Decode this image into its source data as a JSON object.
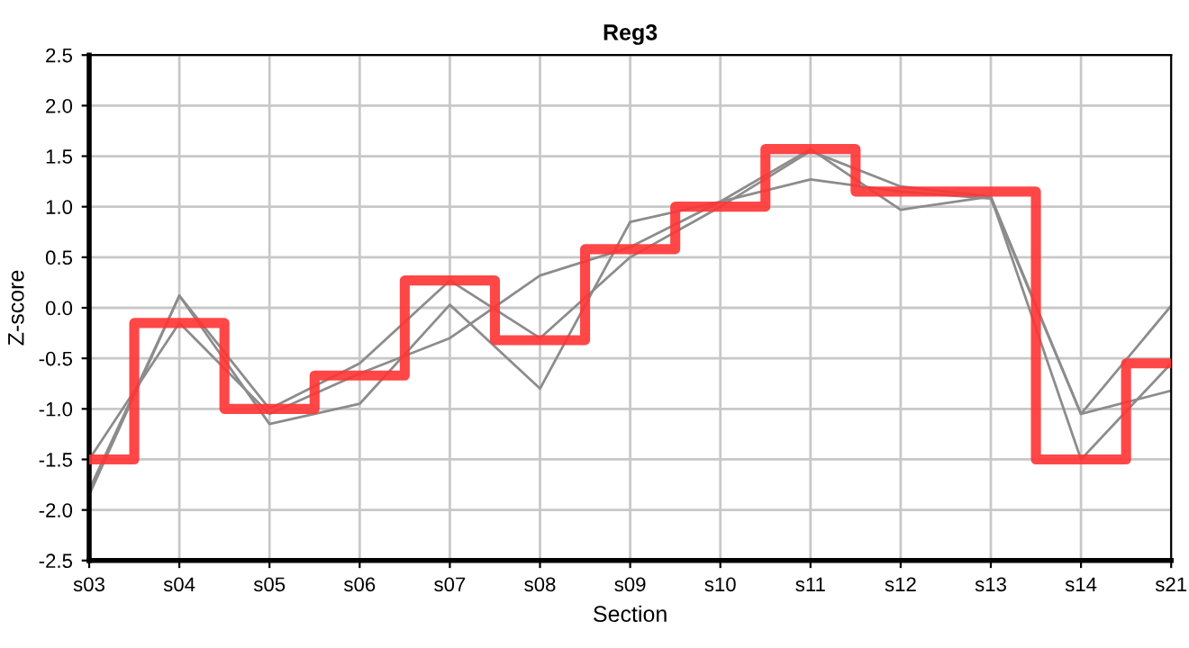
{
  "chart_data": {
    "type": "line",
    "title": "Reg3",
    "xlabel": "Section",
    "ylabel": "Z-score",
    "categories": [
      "s03",
      "s04",
      "s05",
      "s06",
      "s07",
      "s08",
      "s09",
      "s10",
      "s11",
      "s12",
      "s13",
      "s14",
      "s21"
    ],
    "series": [
      {
        "color": "#8c8c8c",
        "values": [
          -1.85,
          0.12,
          -1.15,
          -0.95,
          0.03,
          -0.8,
          0.85,
          1.05,
          1.57,
          0.97,
          1.1,
          -1.05,
          0.02
        ]
      },
      {
        "color": "#8c8c8c",
        "values": [
          -1.8,
          0.12,
          -1.0,
          -0.55,
          0.27,
          -0.3,
          0.5,
          1.0,
          1.55,
          1.2,
          1.1,
          -1.5,
          -0.55
        ]
      },
      {
        "color": "#8c8c8c",
        "values": [
          -1.5,
          -0.15,
          -1.05,
          -0.65,
          -0.3,
          0.32,
          0.6,
          1.05,
          1.27,
          1.15,
          1.08,
          -1.05,
          -0.82
        ]
      },
      {
        "type": "step",
        "color": "#ff3333",
        "values": [
          -1.5,
          -0.15,
          -1.0,
          -0.67,
          0.27,
          -0.32,
          0.58,
          1.0,
          1.57,
          1.15,
          1.15,
          -1.5,
          -0.55
        ]
      }
    ],
    "ylim": [
      -2.5,
      2.5
    ],
    "yticks": [
      {
        "value": -2.5,
        "label": "-2.5"
      },
      {
        "value": -2.0,
        "label": "-2.0"
      },
      {
        "value": -1.5,
        "label": "-1.5"
      },
      {
        "value": -1.0,
        "label": "-1.0"
      },
      {
        "value": -0.5,
        "label": "-0.5"
      },
      {
        "value": 0.0,
        "label": "0.0"
      },
      {
        "value": 0.5,
        "label": "0.5"
      },
      {
        "value": 1.0,
        "label": "1.0"
      },
      {
        "value": 1.5,
        "label": "1.5"
      },
      {
        "value": 2.0,
        "label": "2.0"
      },
      {
        "value": 2.5,
        "label": "2.5"
      }
    ],
    "grid": true
  }
}
